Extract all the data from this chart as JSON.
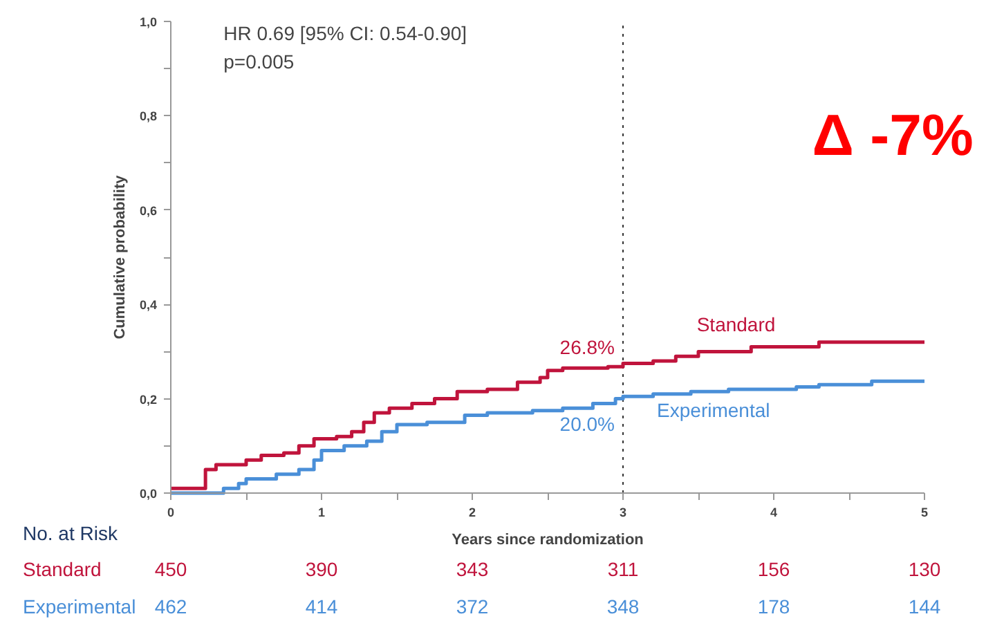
{
  "chart_data": {
    "type": "step",
    "xlabel": "Years since randomization",
    "ylabel": "Cumulative probability",
    "xlim": [
      0,
      5
    ],
    "ylim": [
      0,
      1
    ],
    "xticks": [
      0,
      {
        "value": 0.5,
        "label": null
      },
      1,
      {
        "value": 1.5,
        "label": null
      },
      2,
      {
        "value": 2.5,
        "label": null
      },
      3,
      {
        "value": 3.5,
        "label": null
      },
      4,
      {
        "value": 4.5,
        "label": null
      },
      5
    ],
    "yticks": [
      {
        "value": 0,
        "label": "0,0"
      },
      {
        "value": 0.1,
        "label": null
      },
      {
        "value": 0.2,
        "label": "0,2"
      },
      {
        "value": 0.3,
        "label": null
      },
      {
        "value": 0.4,
        "label": "0,4"
      },
      {
        "value": 0.5,
        "label": null
      },
      {
        "value": 0.6,
        "label": "0,6"
      },
      {
        "value": 0.7,
        "label": null
      },
      {
        "value": 0.8,
        "label": "0,8"
      },
      {
        "value": 0.9,
        "label": null
      },
      {
        "value": 1,
        "label": "1,0"
      }
    ],
    "grid": false,
    "marker": "none",
    "line_style": "solid",
    "series": [
      {
        "name": "Standard",
        "color": "#c0143c",
        "x": [
          0,
          0.23,
          0.3,
          0.5,
          0.6,
          0.75,
          0.85,
          0.95,
          1.1,
          1.2,
          1.28,
          1.35,
          1.45,
          1.6,
          1.75,
          1.9,
          2.1,
          2.3,
          2.45,
          2.5,
          2.6,
          2.9,
          3.0,
          3.2,
          3.35,
          3.5,
          3.85,
          4.3,
          5
        ],
        "values": [
          0.01,
          0.05,
          0.06,
          0.07,
          0.08,
          0.085,
          0.1,
          0.115,
          0.12,
          0.13,
          0.15,
          0.17,
          0.18,
          0.19,
          0.2,
          0.215,
          0.22,
          0.235,
          0.245,
          0.26,
          0.265,
          0.268,
          0.275,
          0.28,
          0.29,
          0.3,
          0.31,
          0.32,
          0.32
        ]
      },
      {
        "name": "Experimental",
        "color": "#4a8fd8",
        "x": [
          0,
          0.35,
          0.45,
          0.5,
          0.7,
          0.85,
          0.95,
          1.0,
          1.15,
          1.3,
          1.4,
          1.5,
          1.7,
          1.95,
          2.1,
          2.4,
          2.6,
          2.8,
          2.95,
          3.0,
          3.2,
          3.45,
          3.7,
          4.15,
          4.3,
          4.65,
          5
        ],
        "values": [
          0,
          0.01,
          0.02,
          0.03,
          0.04,
          0.05,
          0.07,
          0.09,
          0.1,
          0.11,
          0.13,
          0.145,
          0.15,
          0.165,
          0.17,
          0.175,
          0.18,
          0.19,
          0.2,
          0.205,
          0.21,
          0.215,
          0.22,
          0.225,
          0.23,
          0.237,
          0.237
        ]
      }
    ],
    "ref_lines": [
      {
        "axis": "x",
        "value": 3,
        "label": null,
        "color": "#333333",
        "line_style": "dotted"
      }
    ],
    "annotations": [
      "HR 0.69 [95% CI: 0.54-0.90]",
      "p=0.005",
      "Δ  -7%",
      "No. at Risk",
      "Standard",
      "450",
      "390",
      "343",
      "311",
      "156",
      "130",
      "Experimental",
      "462",
      "414",
      "372",
      "348",
      "178",
      "144",
      {
        "text": "26.8%",
        "x": 3,
        "y": 0.268
      },
      {
        "text": "20.0%",
        "x": 3,
        "y": 0.2
      }
    ]
  }
}
